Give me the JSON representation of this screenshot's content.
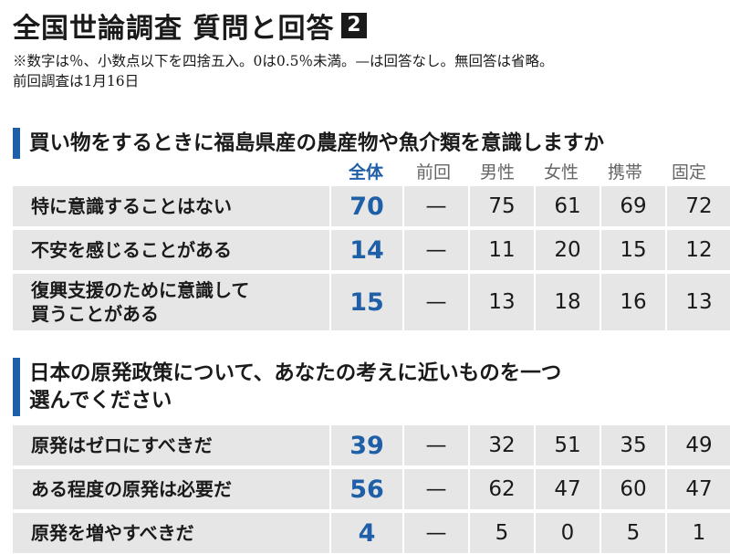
{
  "header": {
    "title": "全国世論調査 質問と回答",
    "badge": "2",
    "note_line1": "※数字は％、小数点以下を四捨五入。0は0.5％未満。—は回答なし。無回答は省略。",
    "note_line2": "前回調査は1月16日"
  },
  "columns": [
    "全体",
    "前回",
    "男性",
    "女性",
    "携帯",
    "固定"
  ],
  "colors": {
    "accent": "#1f5fa8",
    "row_bg": "#e6e6e6"
  },
  "q1": {
    "question": "買い物をするときに福島県産の農産物や魚介類を意識しますか",
    "rows": [
      {
        "label": "特に意識することはない",
        "all": "70",
        "prev": "—",
        "male": "75",
        "female": "61",
        "mobile": "69",
        "fixed": "72"
      },
      {
        "label": "不安を感じることがある",
        "all": "14",
        "prev": "—",
        "male": "11",
        "female": "20",
        "mobile": "15",
        "fixed": "12"
      },
      {
        "label_line1": "復興支援のために意識して",
        "label_line2": "買うことがある",
        "all": "15",
        "prev": "—",
        "male": "13",
        "female": "18",
        "mobile": "16",
        "fixed": "13"
      }
    ]
  },
  "q2": {
    "question_line1": "日本の原発政策について、あなたの考えに近いものを一つ",
    "question_line2": "選んでください",
    "rows": [
      {
        "label": "原発はゼロにすべきだ",
        "all": "39",
        "prev": "—",
        "male": "32",
        "female": "51",
        "mobile": "35",
        "fixed": "49"
      },
      {
        "label": "ある程度の原発は必要だ",
        "all": "56",
        "prev": "—",
        "male": "62",
        "female": "47",
        "mobile": "60",
        "fixed": "47"
      },
      {
        "label": "原発を増やすべきだ",
        "all": "4",
        "prev": "—",
        "male": "5",
        "female": "0",
        "mobile": "5",
        "fixed": "1"
      }
    ]
  }
}
